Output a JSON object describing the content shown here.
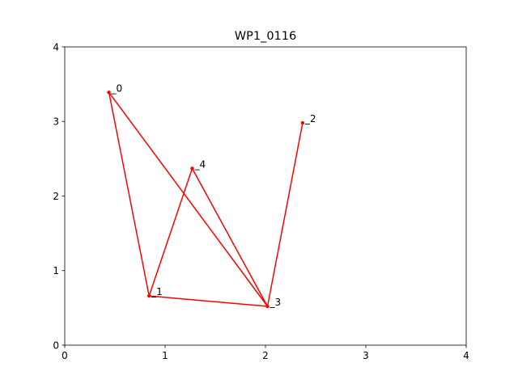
{
  "chart_data": {
    "type": "line",
    "title": "WP1_0116",
    "xlabel": "",
    "ylabel": "",
    "xlim": [
      0,
      4
    ],
    "ylim": [
      0,
      4
    ],
    "xticks": [
      "0",
      "1",
      "2",
      "3",
      "4"
    ],
    "yticks": [
      "0",
      "1",
      "2",
      "3",
      "4"
    ],
    "grid": false,
    "legend": "none",
    "series": [
      {
        "color": "#ff0000",
        "points": [
          {
            "label": "0",
            "x": 0.44,
            "y": 3.39
          },
          {
            "label": "1",
            "x": 0.84,
            "y": 0.66
          },
          {
            "label": "3",
            "x": 2.02,
            "y": 0.52
          },
          {
            "label": "0",
            "x": 0.44,
            "y": 3.39
          }
        ]
      },
      {
        "color": "#ff0000",
        "points": [
          {
            "label": "1",
            "x": 0.84,
            "y": 0.66
          },
          {
            "label": "4",
            "x": 1.27,
            "y": 2.37
          },
          {
            "label": "3",
            "x": 2.02,
            "y": 0.52
          },
          {
            "label": "2",
            "x": 2.37,
            "y": 2.98
          }
        ]
      }
    ],
    "labeled_points": [
      {
        "label": "0",
        "x": 0.44,
        "y": 3.39
      },
      {
        "label": "1",
        "x": 0.84,
        "y": 0.66
      },
      {
        "label": "2",
        "x": 2.37,
        "y": 2.98
      },
      {
        "label": "3",
        "x": 2.02,
        "y": 0.52
      },
      {
        "label": "4",
        "x": 1.27,
        "y": 2.37
      }
    ]
  }
}
